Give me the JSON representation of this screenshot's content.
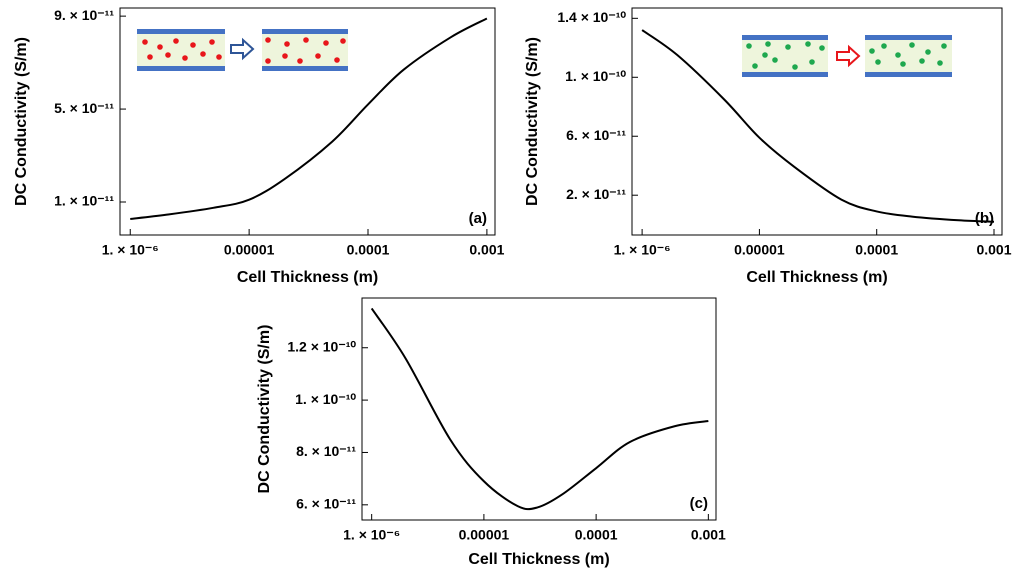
{
  "chart_data": [
    {
      "type": "line",
      "annotation": "(a)",
      "x_label": "Cell Thickness (m)",
      "y_label": "DC Conductivity (S/m)",
      "x": [
        1e-06,
        2e-06,
        5e-06,
        1e-05,
        2e-05,
        5e-05,
        0.0001,
        0.0002,
        0.0005,
        0.001
      ],
      "values": [
        2.7e-12,
        4.5e-12,
        7.5e-12,
        1.1e-11,
        2e-11,
        3.6e-11,
        5.2e-11,
        6.7e-11,
        8.1e-11,
        8.9e-11
      ],
      "color": "#000000",
      "xscale": "log",
      "xlim": [
        8.2e-07,
        0.00117
      ],
      "ylim": [
        -4.2e-12,
        9.35e-11
      ],
      "xticks": [
        {
          "value": 1e-06,
          "label": "1. × 10⁻⁶"
        },
        1e-05,
        0.0001,
        0.001
      ],
      "yticks": [
        {
          "value": 1e-11,
          "label": "1. × 10⁻¹¹"
        },
        {
          "value": 5e-11,
          "label": "5. × 10⁻¹¹"
        },
        {
          "value": 9e-11,
          "label": "9. × 10⁻¹¹"
        }
      ]
    },
    {
      "type": "line",
      "annotation": "(b)",
      "x_label": "Cell Thickness (m)",
      "y_label": "DC Conductivity (S/m)",
      "x": [
        1e-06,
        2e-06,
        5e-06,
        1e-05,
        2e-05,
        5e-05,
        0.0001,
        0.0002,
        0.0005,
        0.001
      ],
      "values": [
        1.32e-10,
        1.15e-10,
        8.5e-11,
        5.9e-11,
        3.9e-11,
        1.7e-11,
        9e-12,
        5.5e-12,
        3e-12,
        2e-12
      ],
      "color": "#000000",
      "xscale": "log",
      "xlim": [
        8.2e-07,
        0.00117
      ],
      "ylim": [
        -7e-12,
        1.47e-10
      ],
      "xticks": [
        {
          "value": 1e-06,
          "label": "1. × 10⁻⁶"
        },
        1e-05,
        0.0001,
        0.001
      ],
      "yticks": [
        {
          "value": 2e-11,
          "label": "2. × 10⁻¹¹"
        },
        {
          "value": 6e-11,
          "label": "6. × 10⁻¹¹"
        },
        {
          "value": 1e-10,
          "label": "1. × 10⁻¹⁰"
        },
        {
          "value": 1.4e-10,
          "label": "1.4 × 10⁻¹⁰"
        }
      ]
    },
    {
      "type": "line",
      "annotation": "(c)",
      "x_label": "Cell Thickness (m)",
      "y_label": "DC Conductivity (S/m)",
      "x": [
        1e-06,
        2e-06,
        5e-06,
        1e-05,
        2e-05,
        3e-05,
        5e-05,
        0.0001,
        0.0002,
        0.0005,
        0.001
      ],
      "values": [
        1.35e-10,
        1.16e-10,
        8.5e-11,
        6.9e-11,
        5.95e-11,
        5.9e-11,
        6.4e-11,
        7.4e-11,
        8.4e-11,
        9e-11,
        9.2e-11
      ],
      "color": "#000000",
      "xscale": "log",
      "xlim": [
        8.2e-07,
        0.00117
      ],
      "ylim": [
        5.42e-11,
        1.39e-10
      ],
      "xticks": [
        {
          "value": 1e-06,
          "label": "1. × 10⁻⁶"
        },
        1e-05,
        0.0001,
        0.001
      ],
      "yticks": [
        {
          "value": 6e-11,
          "label": "6. × 10⁻¹¹"
        },
        {
          "value": 8e-11,
          "label": "8. × 10⁻¹¹"
        },
        {
          "value": 1e-10,
          "label": "1. × 10⁻¹⁰"
        },
        {
          "value": 1.2e-10,
          "label": "1.2 × 10⁻¹⁰"
        }
      ]
    }
  ]
}
